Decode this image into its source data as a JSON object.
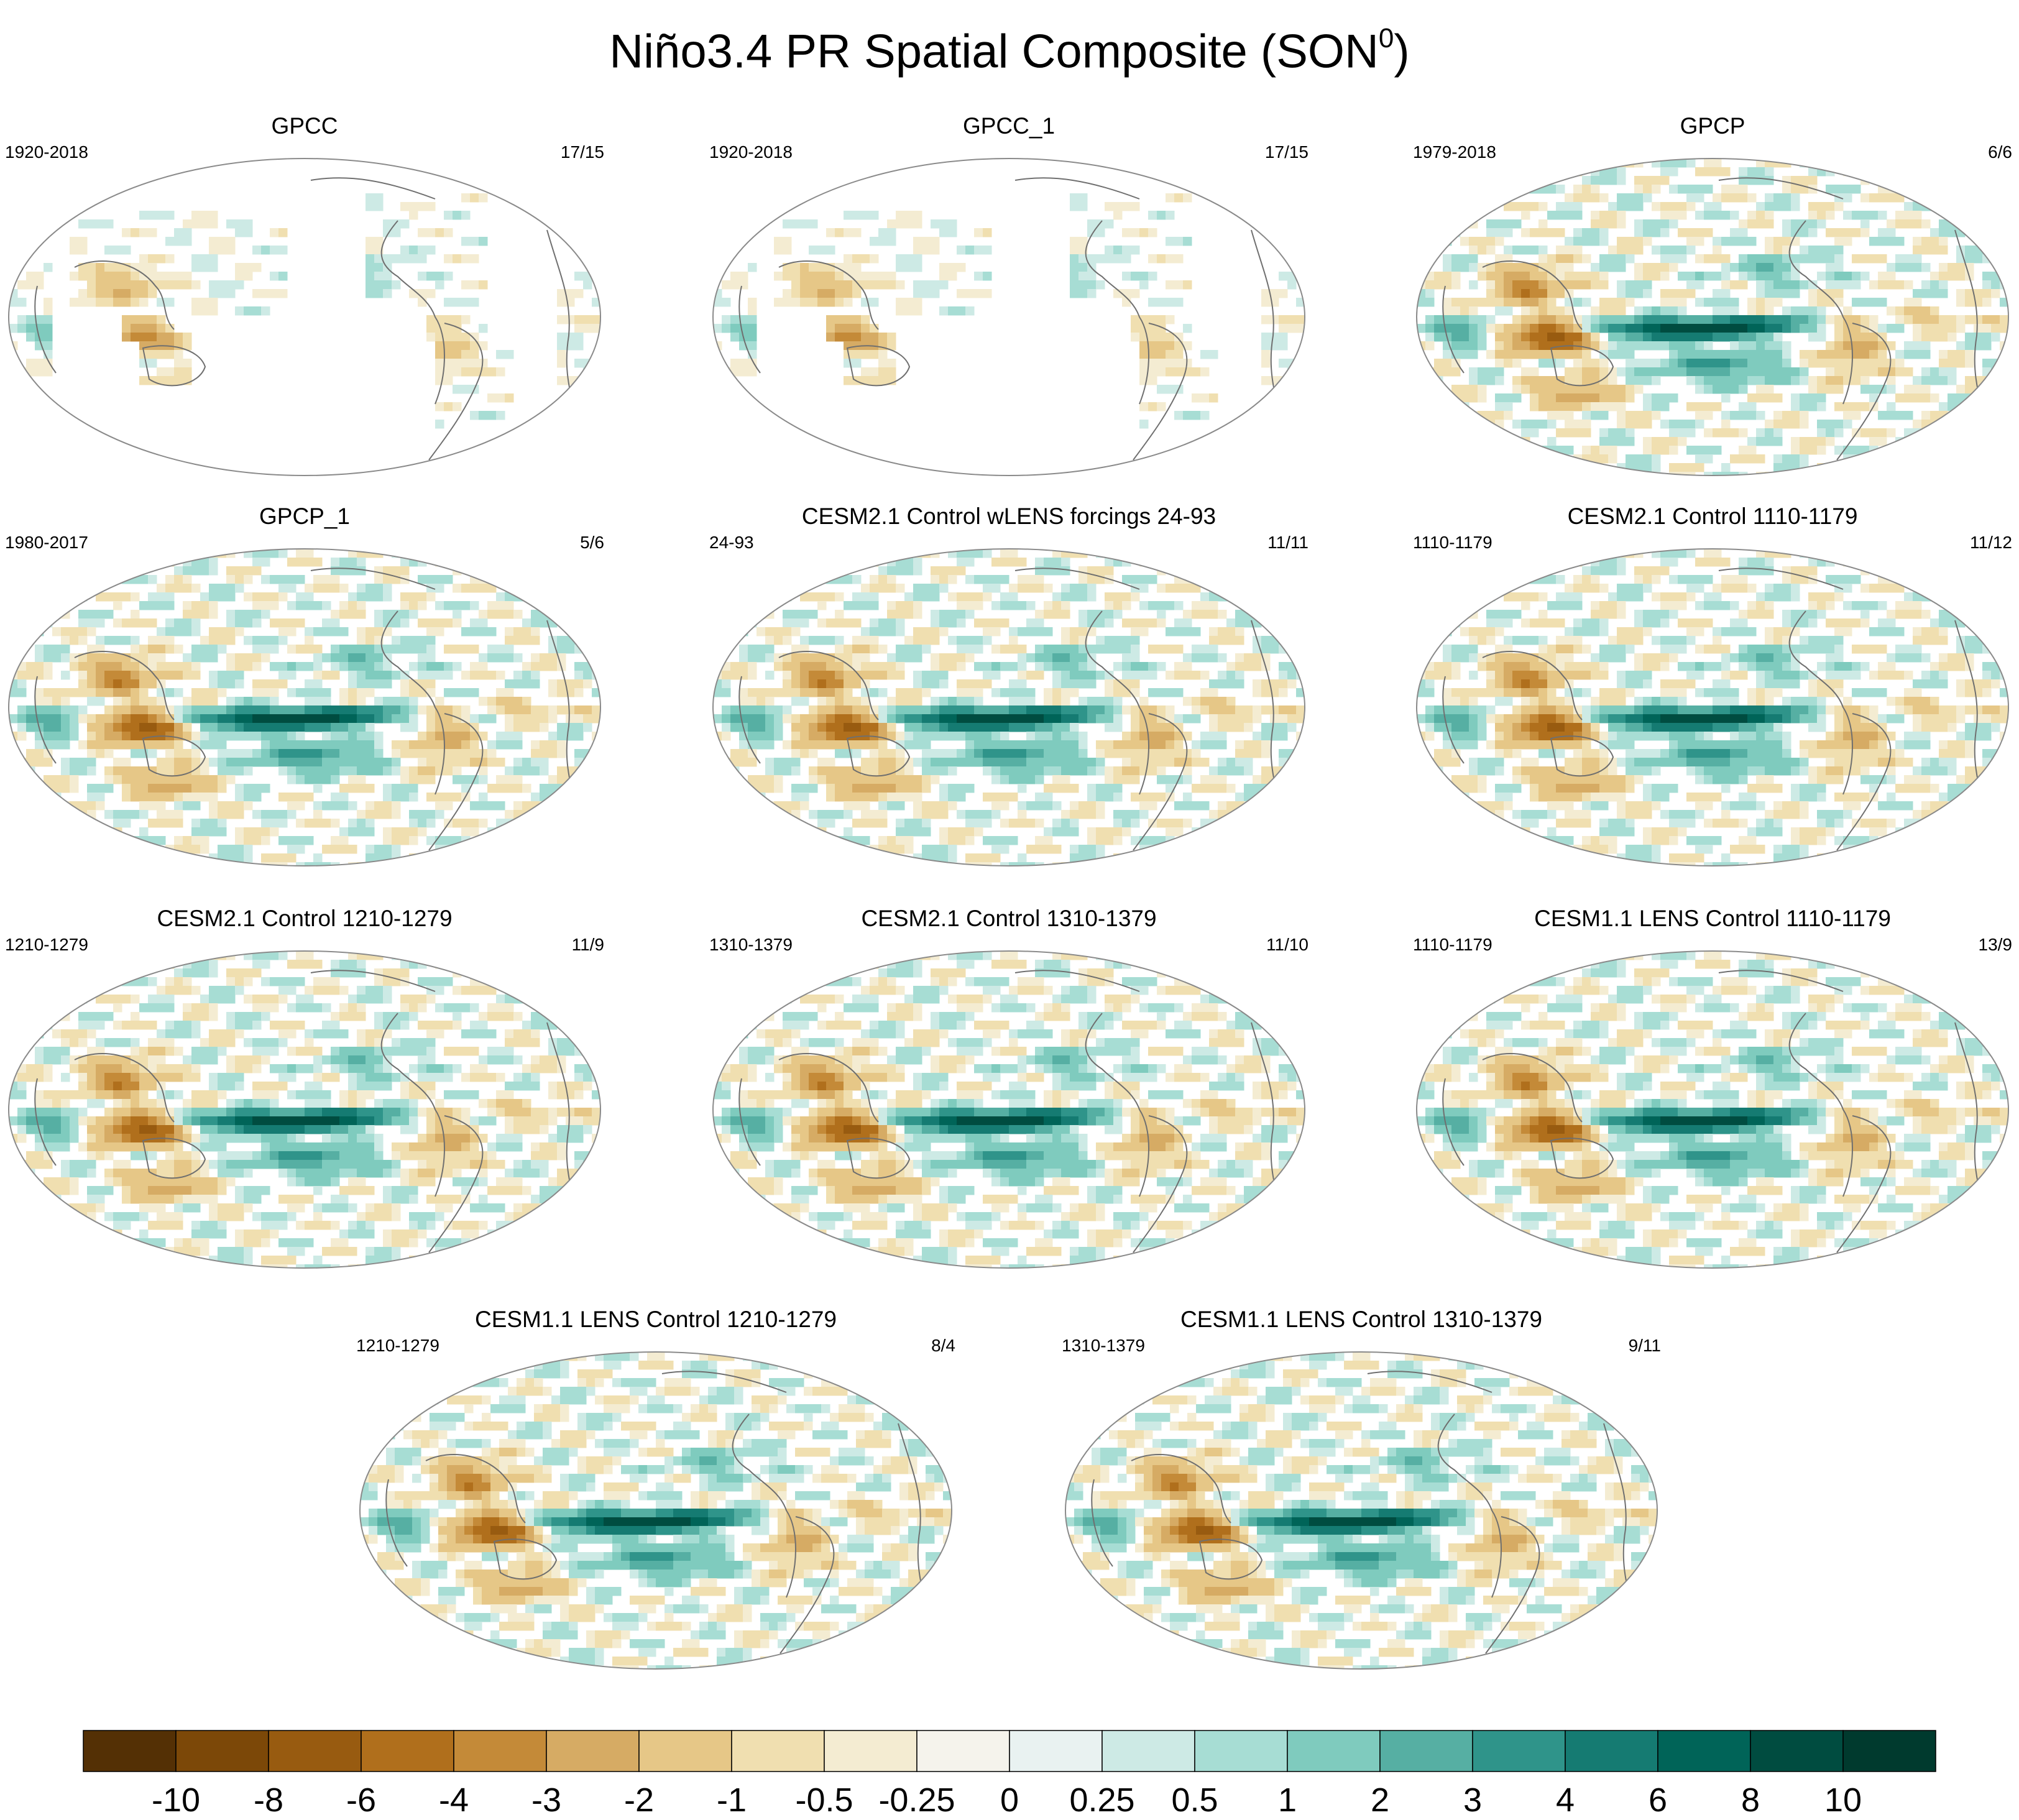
{
  "chart_data": {
    "type": "heatmap",
    "title": "Niño3.4 PR Spatial Composite (SON",
    "title_superscript": "0",
    "title_close": ")",
    "projection": "robinson",
    "colorbar": {
      "orientation": "horizontal",
      "position": "bottom",
      "levels": [
        "-10",
        "-8",
        "-6",
        "-4",
        "-3",
        "-2",
        "-1",
        "-0.5",
        "-0.25",
        "0",
        "0.25",
        "0.5",
        "1",
        "2",
        "3",
        "4",
        "6",
        "8",
        "10"
      ],
      "colors": [
        "#543005",
        "#7c4808",
        "#985b10",
        "#b06f1c",
        "#c48a38",
        "#d6ab64",
        "#e6c787",
        "#f0dfb0",
        "#f4ecd2",
        "#f5f3ec",
        "#e9f2f1",
        "#cdeae5",
        "#a7ddd4",
        "#7fcbbe",
        "#56afa3",
        "#2f948a",
        "#157b72",
        "#006458",
        "#004c40",
        "#003a2e"
      ]
    },
    "panels": [
      {
        "title": "GPCC",
        "left": "1920-2018",
        "right": "17/15",
        "source": "obs_land"
      },
      {
        "title": "GPCC_1",
        "left": "1920-2018",
        "right": "17/15",
        "source": "obs_land"
      },
      {
        "title": "GPCP",
        "left": "1979-2018",
        "right": "6/6",
        "source": "obs_global"
      },
      {
        "title": "GPCP_1",
        "left": "1980-2017",
        "right": "5/6",
        "source": "obs_global"
      },
      {
        "title": "CESM2.1 Control wLENS forcings 24-93",
        "left": "24-93",
        "right": "11/11",
        "source": "model"
      },
      {
        "title": "CESM2.1 Control 1110-1179",
        "left": "1110-1179",
        "right": "11/12",
        "source": "model"
      },
      {
        "title": "CESM2.1 Control 1210-1279",
        "left": "1210-1279",
        "right": "11/9",
        "source": "model"
      },
      {
        "title": "CESM2.1 Control 1310-1379",
        "left": "1310-1379",
        "right": "11/10",
        "source": "model"
      },
      {
        "title": "CESM1.1 LENS Control 1110-1179",
        "left": "1110-1179",
        "right": "13/9",
        "source": "model"
      },
      {
        "title": "CESM1.1 LENS Control 1210-1279",
        "left": "1210-1279",
        "right": "8/4",
        "source": "model"
      },
      {
        "title": "CESM1.1 LENS Control 1310-1379",
        "left": "1310-1379",
        "right": "9/11",
        "source": "model"
      }
    ]
  }
}
